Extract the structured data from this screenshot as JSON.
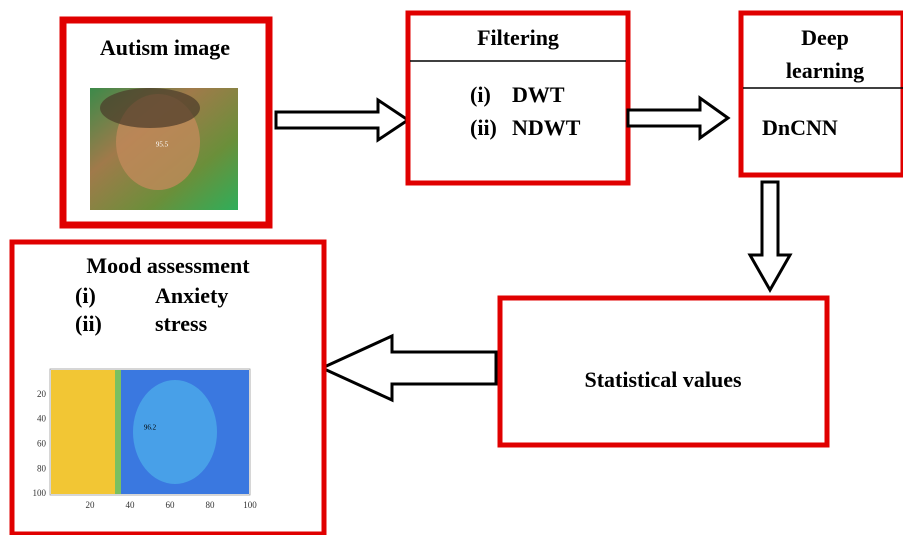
{
  "nodes": [
    {
      "title": "Autism image",
      "image_label": "95.5"
    },
    {
      "title": "Filtering",
      "items": [
        {
          "marker": "(i)",
          "text": "DWT"
        },
        {
          "marker": "(ii)",
          "text": "NDWT"
        }
      ]
    },
    {
      "title_lines": [
        "Deep",
        "learning"
      ],
      "items": [
        "DnCNN"
      ]
    },
    {
      "title": "Statistical values"
    },
    {
      "title": "Mood assessment",
      "items": [
        {
          "marker": "(i)",
          "text": "Anxiety"
        },
        {
          "marker": "(ii)",
          "text": "stress"
        }
      ],
      "image_label": "96.2",
      "image_yticks": [
        20,
        40,
        60,
        80,
        100
      ],
      "image_xticks": [
        20,
        40,
        60,
        80,
        100
      ]
    }
  ]
}
